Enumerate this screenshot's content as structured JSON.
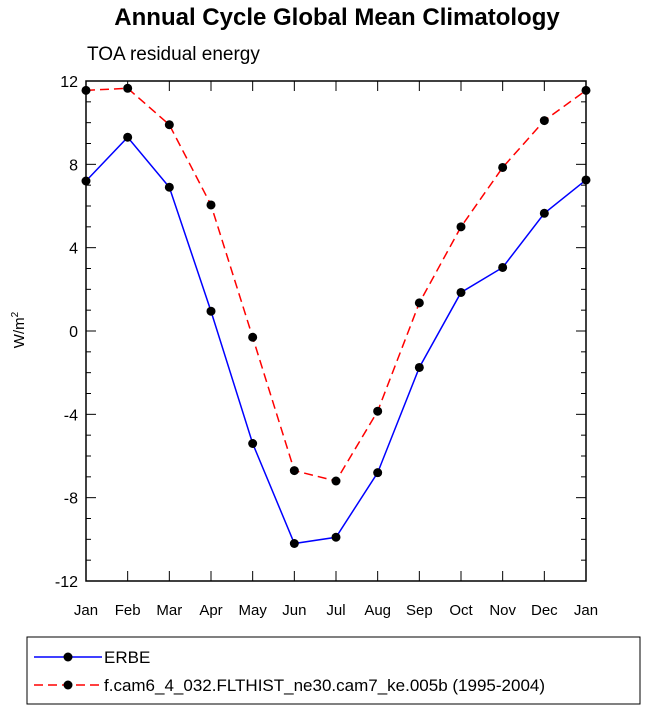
{
  "chart_data": {
    "type": "line",
    "title": "Annual Cycle Global Mean Climatology",
    "subtitle": "TOA residual energy",
    "ylabel": "W/m",
    "ylabel_sup": "2",
    "xlabel": "",
    "categories": [
      "Jan",
      "Feb",
      "Mar",
      "Apr",
      "May",
      "Jun",
      "Jul",
      "Aug",
      "Sep",
      "Oct",
      "Nov",
      "Dec",
      "Jan"
    ],
    "ylim": [
      -12,
      12
    ],
    "yticks": [
      -12,
      -8,
      -4,
      0,
      4,
      8,
      12
    ],
    "yticklabels": [
      "-12",
      "-8",
      "-4",
      "0",
      "4",
      "8",
      "12"
    ],
    "grid": false,
    "legend_position": "bottom",
    "series": [
      {
        "name": "ERBE",
        "color": "#0000ff",
        "dash": "solid",
        "values": [
          7.2,
          9.3,
          6.9,
          0.95,
          -5.4,
          -10.2,
          -9.9,
          -6.8,
          -1.75,
          1.85,
          3.05,
          5.65,
          7.25
        ]
      },
      {
        "name": "f.cam6_4_032.FLTHIST_ne30.cam7_ke.005b (1995-2004)",
        "color": "#ff0000",
        "dash": "dashed",
        "values": [
          11.55,
          11.65,
          9.9,
          6.05,
          -0.3,
          -6.7,
          -7.2,
          -3.85,
          1.35,
          5.0,
          7.85,
          10.1,
          11.55
        ]
      }
    ]
  }
}
